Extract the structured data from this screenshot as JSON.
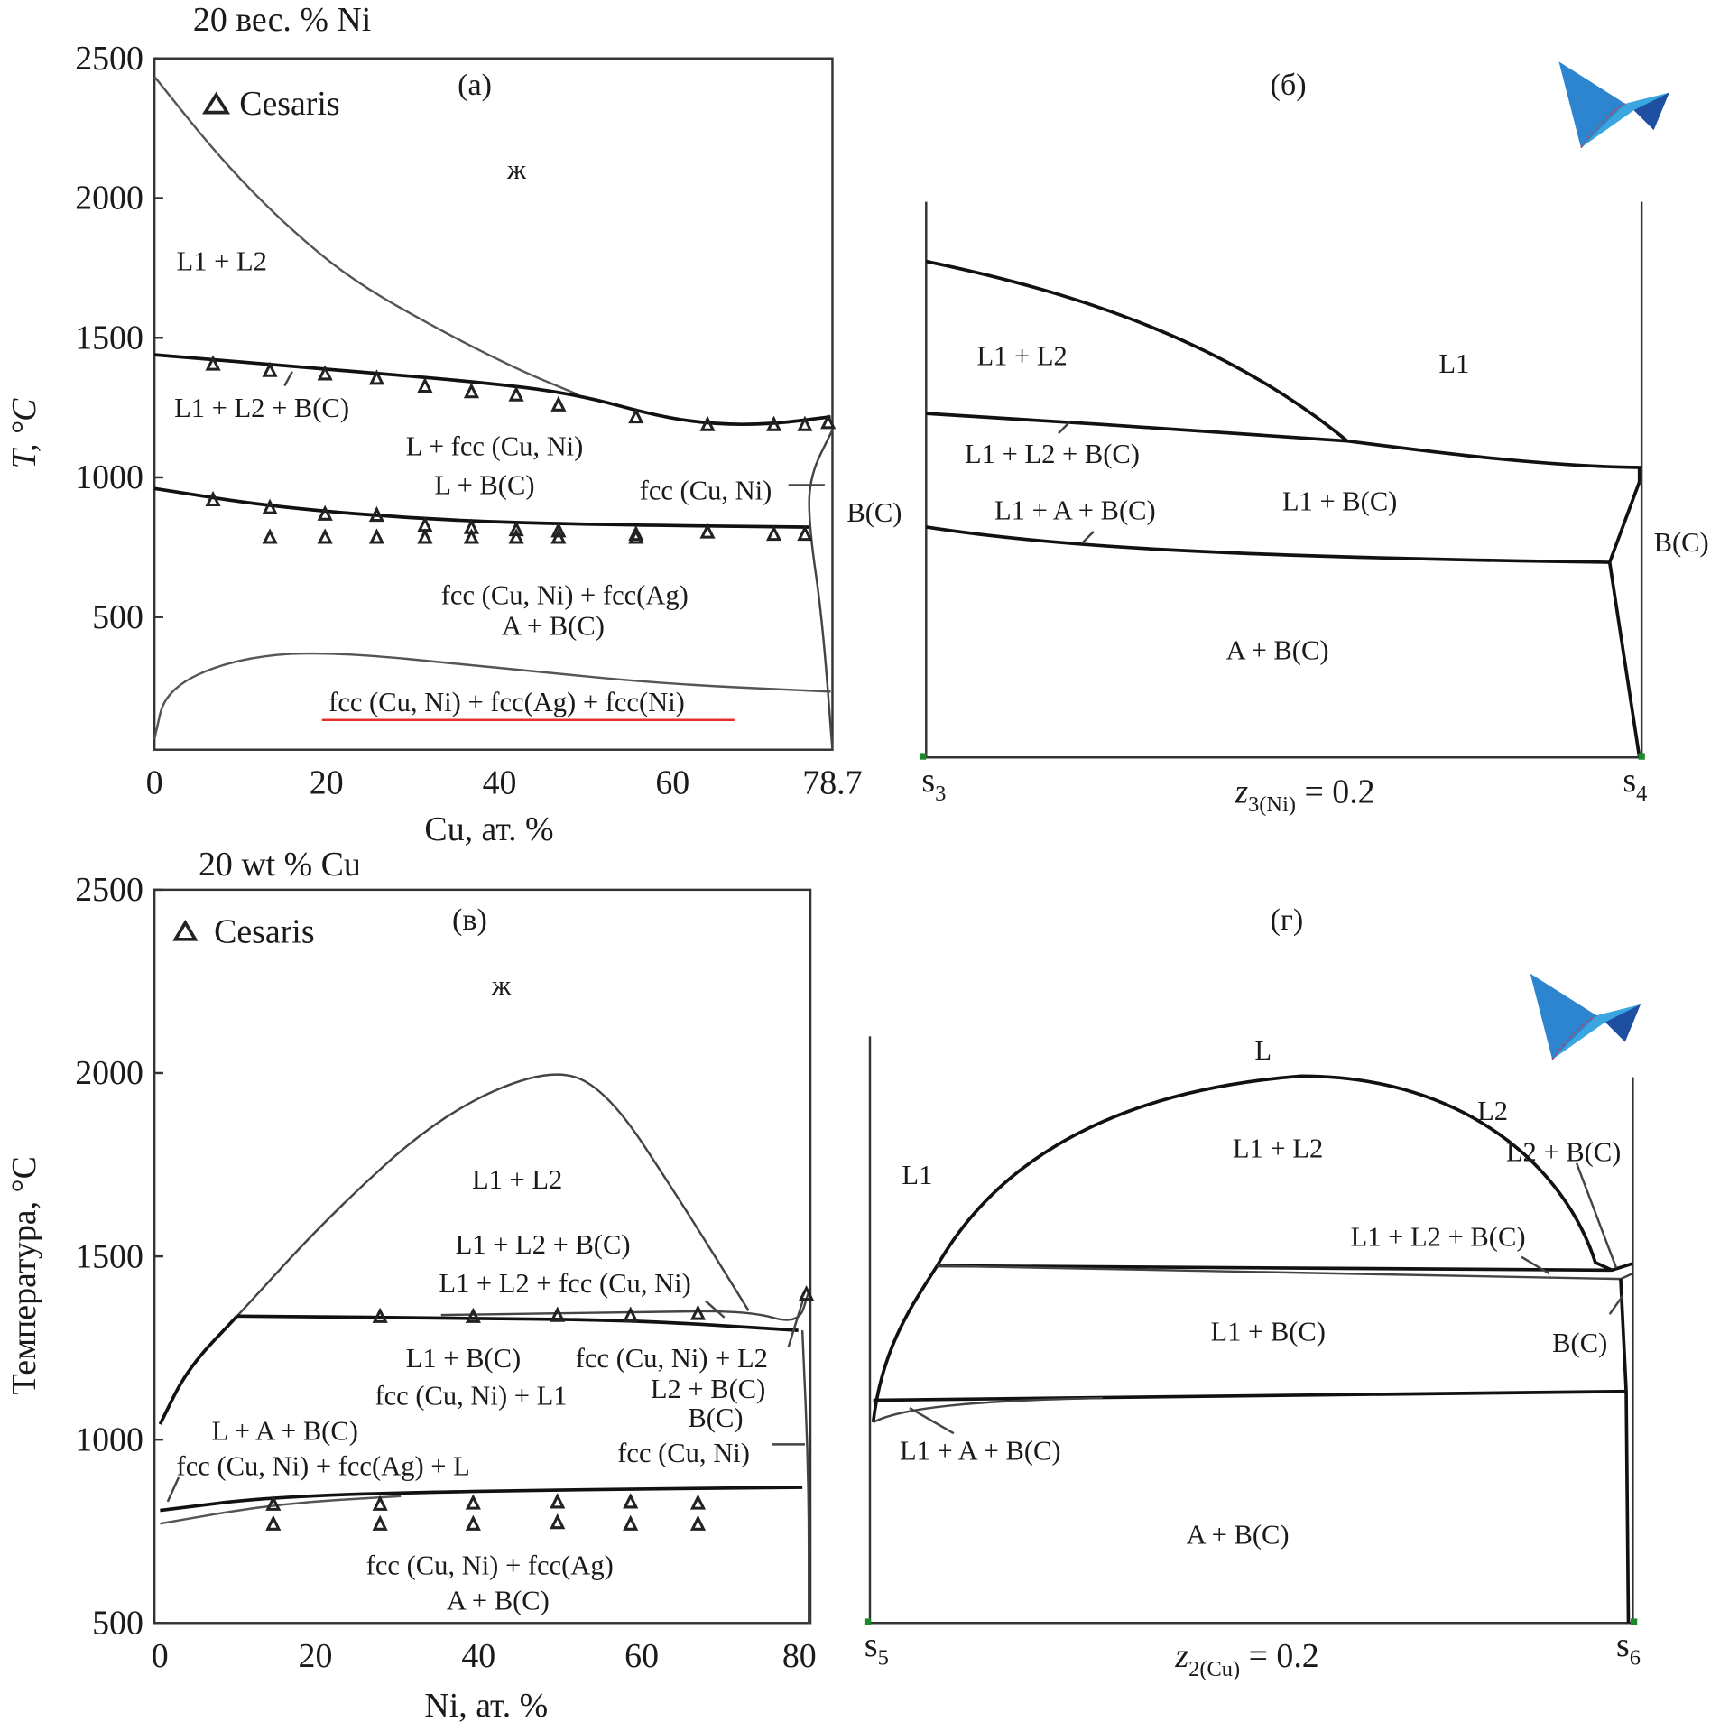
{
  "chart_data": [
    {
      "id": "a",
      "type": "line",
      "panel_label": "(а)",
      "title": "20 вес. % Ni",
      "xlabel": "Cu, ат. %",
      "ylabel": "T, °C",
      "xlim": [
        0,
        78.7
      ],
      "ylim": [
        0,
        2500
      ],
      "xticks": [
        "0",
        "20",
        "40",
        "60",
        "78.7"
      ],
      "yticks": [
        "2500",
        "2000",
        "1500",
        "1000",
        "500"
      ],
      "legend": {
        "label": "Cesaris",
        "marker": "triangle-open",
        "position": "top-left"
      },
      "lines": [
        {
          "x": [
            0,
            7.7,
            15.3,
            23,
            33.2,
            42.1,
            49.2
          ],
          "y": [
            2435,
            2139,
            1901,
            1704,
            1526,
            1387,
            1296
          ],
          "color": "#555555"
        },
        {
          "x": [
            0,
            20.4,
            39.6,
            49.2,
            58.7,
            65.1,
            71.5,
            78.5
          ],
          "y": [
            1439,
            1387,
            1336,
            1296,
            1217,
            1190,
            1190,
            1217
          ],
          "color": "#111111"
        },
        {
          "x": [
            0,
            14,
            33.2,
            52.4,
            76
          ],
          "y": [
            960,
            893,
            846,
            830,
            822
          ],
          "color": "#111111"
        },
        {
          "x": [
            78.7,
            76,
            76,
            77.5,
            78.7
          ],
          "y": [
            1170,
            1000,
            820,
            500,
            25
          ],
          "color": "#444444"
        },
        {
          "x": [
            0,
            1.3,
            8.9,
            19.2,
            39.6,
            58.7,
            78.5
          ],
          "y": [
            63,
            241,
            348,
            380,
            320,
            261,
            233
          ],
          "color": "#555555"
        }
      ],
      "points": {
        "x": [
          6.8,
          13.4,
          19.8,
          25.8,
          31.4,
          36.8,
          42,
          46.9,
          55.9,
          64.2,
          71.9,
          75.5,
          78.2,
          6.8,
          13.4,
          19.8,
          25.8,
          31.4,
          36.8,
          42,
          46.9,
          55.9,
          64.2,
          71.9,
          75.5,
          13.4,
          19.8,
          25.8,
          31.4,
          36.8,
          42,
          46.9,
          55.9
        ],
        "y": [
          1407,
          1384,
          1372,
          1356,
          1328,
          1308,
          1297,
          1261,
          1218,
          1190,
          1190,
          1190,
          1198,
          921,
          893,
          870,
          866,
          830,
          822,
          814,
          810,
          798,
          806,
          798,
          798,
          787,
          787,
          787,
          787,
          787,
          787,
          787,
          787
        ]
      },
      "annotations": [
        "ж",
        "L1 + L2",
        "L1 + L2 + B(C)",
        "L + fcc (Cu, Ni)",
        "L + B(C)",
        "fcc (Cu, Ni)",
        "B(C)",
        "fcc (Cu, Ni) + fcc(Ag)",
        "A + B(C)",
        "fcc (Cu, Ni) + fcc(Ag) + fcc(Ni)"
      ],
      "underline_color": "#e8302a"
    },
    {
      "id": "b",
      "type": "line",
      "panel_label": "(б)",
      "x_start": {
        "main": "s",
        "sub": "3"
      },
      "x_end": {
        "main": "s",
        "sub": "4"
      },
      "xlabel": {
        "main": "z",
        "sub": "3(Ni)",
        "rest": " = 0.2"
      },
      "annotations": [
        "L1 + L2",
        "L1",
        "L1 + L2 + B(C)",
        "L1 + B(C)",
        "L1 + A + B(C)",
        "B(C)",
        "A + B(C)"
      ],
      "logo_color": "#3aa6e0"
    },
    {
      "id": "v",
      "type": "line",
      "panel_label": "(в)",
      "title": "20 wt % Cu",
      "xlabel": "Ni, ат. %",
      "ylabel": "Температура, °С",
      "xlim": [
        0,
        81
      ],
      "ylim": [
        500,
        2500
      ],
      "xticks": [
        "0",
        "20",
        "40",
        "60",
        "80"
      ],
      "yticks": [
        "2500",
        "2000",
        "1500",
        "1000",
        "500"
      ],
      "legend": {
        "label": "Cesaris",
        "marker": "triangle-open",
        "position": "top-left"
      },
      "lines": [
        {
          "x": [
            9.6,
            21.2,
            34.9,
            48.2,
            55.5,
            65,
            73.3
          ],
          "y": [
            1337,
            1614,
            1886,
            2015,
            1961,
            1645,
            1352
          ],
          "color": "#444444"
        },
        {
          "x": [
            0,
            3.4,
            9.6
          ],
          "y": [
            1042,
            1193,
            1337
          ],
          "color": "#111111"
        },
        {
          "x": [
            9.6,
            40,
            60,
            79.5
          ],
          "y": [
            1337,
            1331,
            1325,
            1298
          ],
          "color": "#111111"
        },
        {
          "x": [
            35,
            60,
            73.3,
            79.5,
            80.8
          ],
          "y": [
            1340,
            1348,
            1352,
            1313,
            1404
          ],
          "color": "#444444"
        },
        {
          "x": [
            0,
            14.4,
            41.8,
            80
          ],
          "y": [
            807,
            846,
            861,
            870
          ],
          "color": "#111111"
        },
        {
          "x": [
            0,
            14.4,
            30
          ],
          "y": [
            771,
            825,
            846
          ],
          "color": "#555555"
        },
        {
          "x": [
            80,
            80.8,
            80.8
          ],
          "y": [
            1298,
            900,
            500
          ],
          "color": "#444444"
        }
      ],
      "points": {
        "x": [
          27.4,
          39,
          49.5,
          58.6,
          67,
          80.5,
          14.1,
          27.4,
          39,
          49.5,
          58.6,
          67,
          14.1,
          27.4,
          39,
          49.5,
          58.6,
          67
        ],
        "y": [
          1337,
          1337,
          1340,
          1340,
          1345,
          1398,
          825,
          825,
          828,
          831,
          831,
          828,
          771,
          771,
          771,
          775,
          771,
          771
        ]
      },
      "annotations": [
        "ж",
        "L1 + L2",
        "L1 + L2 + B(C)",
        "L1 + L2 + fcc (Cu, Ni)",
        "L1 + B(C)",
        "fcc (Cu, Ni) + L2",
        "fcc (Cu, Ni) + L1",
        "L2 + B(C)",
        "B(C)",
        "L + A + B(C)",
        "fcc (Cu, Ni)",
        "fcc (Cu, Ni) + fcc(Ag) + L",
        "fcc (Cu, Ni) + fcc(Ag)",
        "A + B(C)"
      ]
    },
    {
      "id": "g",
      "type": "line",
      "panel_label": "(г)",
      "x_start": {
        "main": "s",
        "sub": "5"
      },
      "x_end": {
        "main": "s",
        "sub": "6"
      },
      "xlabel": {
        "main": "z",
        "sub": "2(Cu)",
        "rest": " = 0.2"
      },
      "annotations": [
        "L",
        "L2",
        "L1 + L2",
        "L2 + B(C)",
        "L1",
        "L1 + L2 + B(C)",
        "L1 + B(C)",
        "B(C)",
        "L1 + A + B(C)",
        "A + B(C)"
      ],
      "logo_color": "#3aa6e0"
    }
  ]
}
